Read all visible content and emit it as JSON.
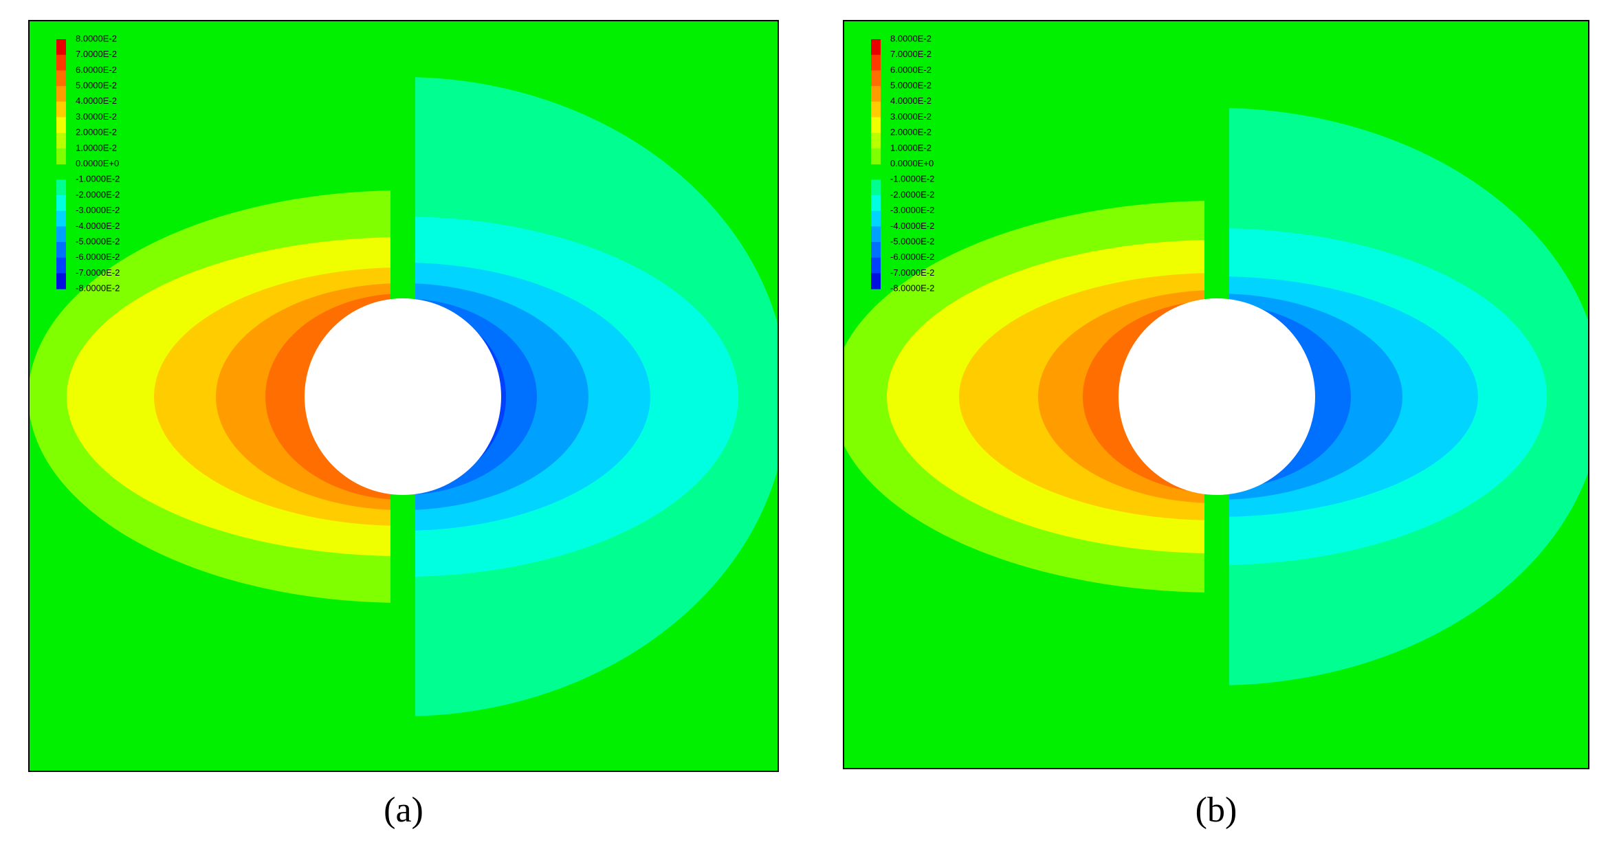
{
  "figure": {
    "colorbar_colors": [
      "#e80000",
      "#ff3a00",
      "#ff6e00",
      "#ff9c00",
      "#ffcc00",
      "#f0ff00",
      "#b8ff00",
      "#80ff00",
      "#00f000",
      "#00ff90",
      "#00ffe0",
      "#00d4ff",
      "#00a0ff",
      "#0070ff",
      "#0040ff",
      "#0010e0"
    ],
    "background_color": "#00f000",
    "panels": [
      {
        "caption": "(a)",
        "legend_labels": [
          "8.0000E-2",
          "7.0000E-2",
          "6.0000E-2",
          "5.0000E-2",
          "4.0000E-2",
          "3.0000E-2",
          "2.0000E-2",
          "1.0000E-2",
          "0.0000E+0",
          "-1.0000E-2",
          "-2.0000E-2",
          "-3.0000E-2",
          "-4.0000E-2",
          "-5.0000E-2",
          "-6.0000E-2",
          "-7.0000E-2",
          "-8.0000E-2"
        ]
      },
      {
        "caption": "(b)",
        "legend_labels": [
          "8.0000E-2",
          "7.0000E-2",
          "6.0000E-2",
          "5.0000E-2",
          "4.0000E-2",
          "3.0000E-2",
          "2.0000E-2",
          "1.0000E-2",
          "0.0000E+0",
          "-1.0000E-2",
          "-2.0000E-2",
          "-3.0000E-2",
          "-4.0000E-2",
          "-5.0000E-2",
          "-6.0000E-2",
          "-7.0000E-2",
          "-8.0000E-2"
        ]
      }
    ]
  }
}
